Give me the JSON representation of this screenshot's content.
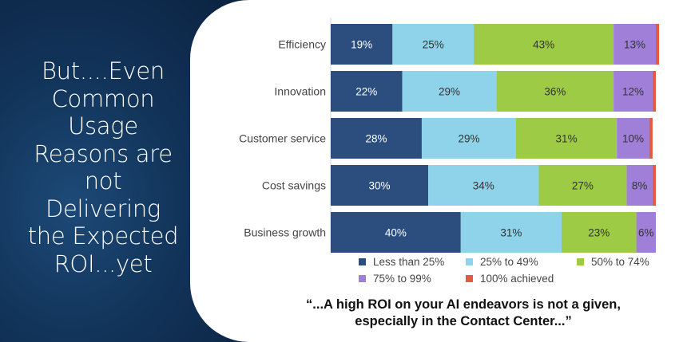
{
  "slide": {
    "heading": "But....Even\nCommon\nUsage\nReasons are\nnot\nDelivering\nthe Expected\nROI...yet",
    "quote_line1": "“...A high ROI on your AI endeavors  is not a given,",
    "quote_line2": "especially in the Contact Center...”"
  },
  "chart_data": {
    "type": "bar",
    "orientation": "horizontal",
    "stacked": true,
    "title": "",
    "xlabel": "",
    "ylabel": "",
    "xlim": [
      0,
      100
    ],
    "categories": [
      "Efficiency",
      "Innovation",
      "Customer service",
      "Cost savings",
      "Business growth"
    ],
    "series": [
      {
        "name": "Less than 25%",
        "color": "#2b4e7e",
        "values": [
          19,
          22,
          28,
          30,
          40
        ],
        "labels": [
          "19%",
          "22%",
          "28%",
          "30%",
          "40%"
        ]
      },
      {
        "name": "25% to 49%",
        "color": "#8fd3ea",
        "values": [
          25,
          29,
          29,
          34,
          31
        ],
        "labels": [
          "25%",
          "29%",
          "29%",
          "34%",
          "31%"
        ]
      },
      {
        "name": "50% to 74%",
        "color": "#9dcb45",
        "values": [
          43,
          36,
          31,
          27,
          23
        ],
        "labels": [
          "43%",
          "36%",
          "31%",
          "27%",
          "23%"
        ]
      },
      {
        "name": "75% to 99%",
        "color": "#a07fd9",
        "values": [
          13,
          12,
          10,
          8,
          6
        ],
        "labels": [
          "13%",
          "12%",
          "10%",
          "8%",
          "6%"
        ]
      },
      {
        "name": "100% achieved",
        "color": "#e25b3e",
        "values": [
          1,
          1,
          1,
          1,
          0
        ],
        "labels": [
          "",
          "",
          "",
          "",
          ""
        ]
      }
    ],
    "legend": {
      "placement": "bottom"
    }
  }
}
